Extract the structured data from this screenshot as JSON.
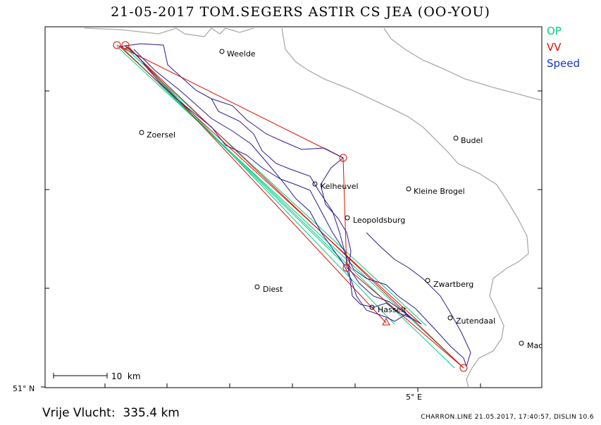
{
  "title": "21-05-2017   TOM.SEGERS   ASTIR CS JEA (OO-YOU)",
  "legend": [
    {
      "label": "OP",
      "color": "#00cc88"
    },
    {
      "label": "VV",
      "color": "#dd1100"
    },
    {
      "label": "Speed",
      "color": "#1133cc"
    }
  ],
  "scale_bar_label": "10  km",
  "axis": {
    "lat_label": "51° N",
    "lon_label": "5° E"
  },
  "places": [
    {
      "name": "Weelde"
    },
    {
      "name": "Zoersel"
    },
    {
      "name": "Budel"
    },
    {
      "name": "Kelheuvel"
    },
    {
      "name": "Kleine Brogel"
    },
    {
      "name": "Leopoldsburg"
    },
    {
      "name": "Zwartberg"
    },
    {
      "name": "Diest"
    },
    {
      "name": "Hasselt"
    },
    {
      "name": "Zutendaal"
    },
    {
      "name": "Mac"
    }
  ],
  "flight_distance": "Vrije Vlucht:  335.4 km",
  "footer": "CHARRON.LINE 21.05.2017, 17:40:57, DISLIN 10.6",
  "colors": {
    "border": "#aaaaaa",
    "op": "#00cc88",
    "vv": "#dd1100",
    "track": "#2a1a88"
  }
}
